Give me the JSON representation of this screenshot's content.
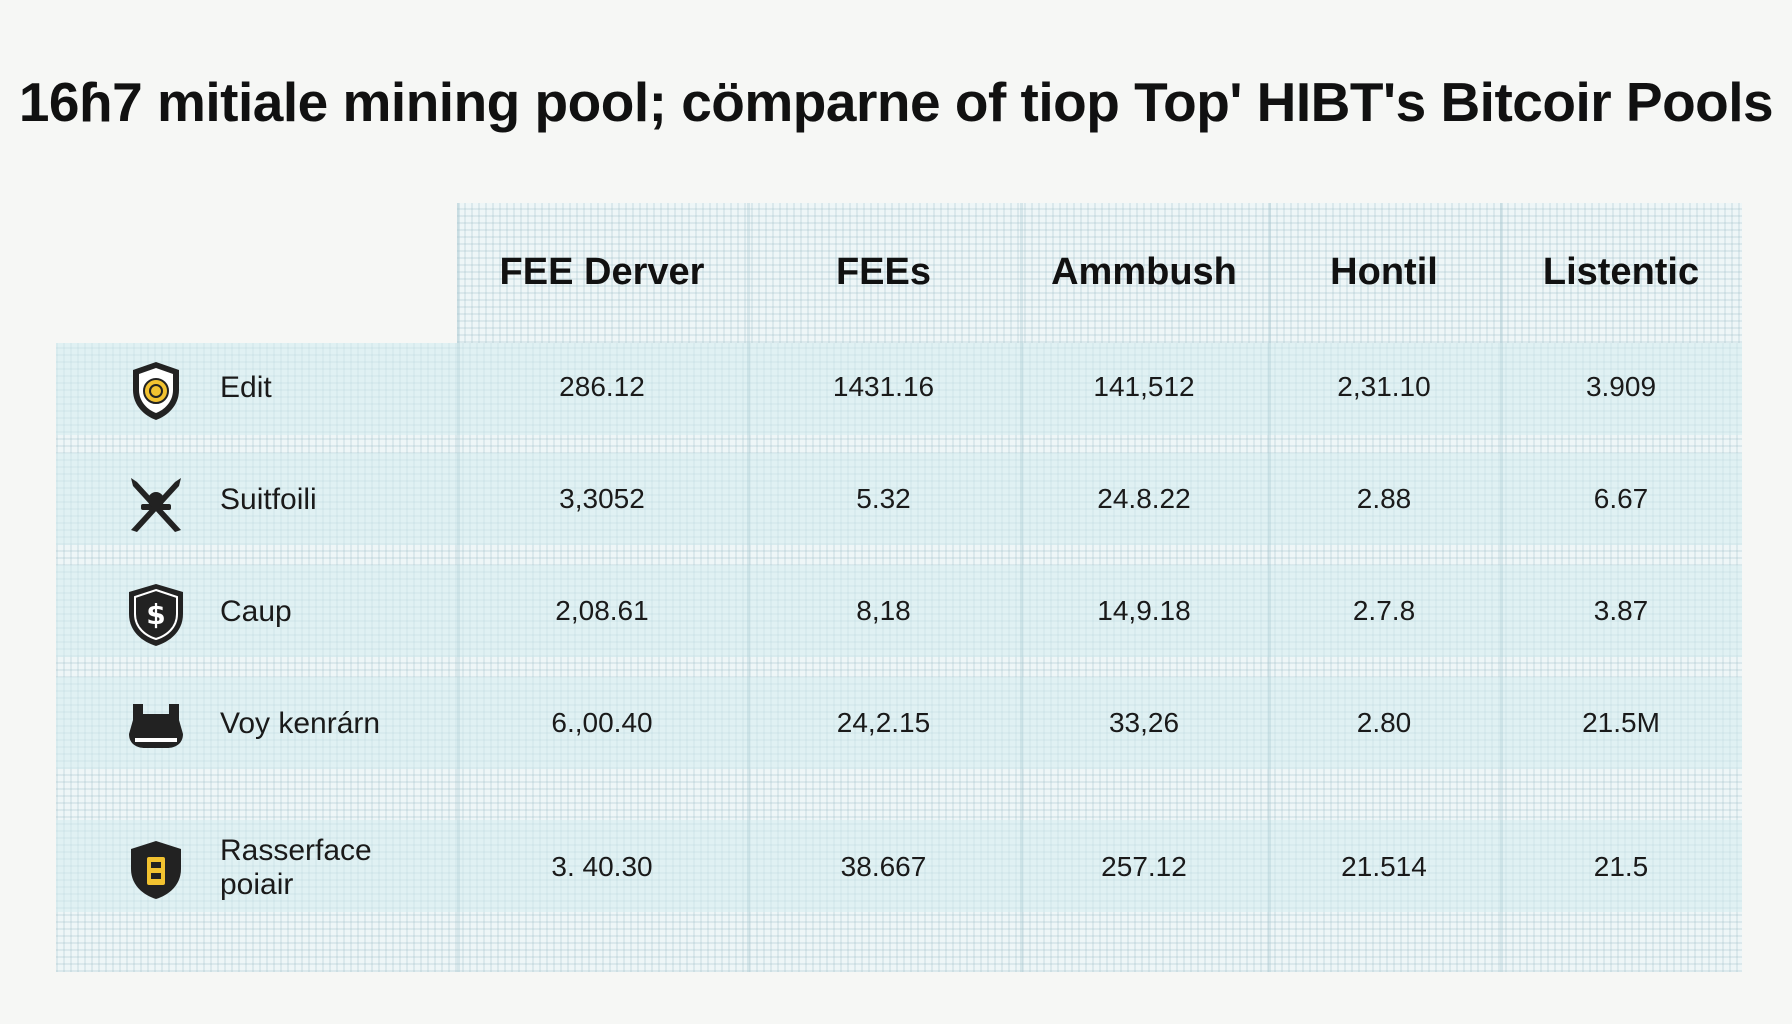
{
  "chart_data": {
    "type": "table",
    "title": "16ɦ7 mitiale mining pool; cömparne of tiop Top' HIBT's Bitcoir Pools",
    "columns": [
      "FEE Derver",
      "FEEs",
      "Ammbush",
      "Hontil",
      "Listentic"
    ],
    "rows": [
      {
        "label": "Edit",
        "icon": "shield-coin-icon",
        "values": [
          "286.12",
          "1431.16",
          "141,512",
          "2,31.10",
          "3.909"
        ]
      },
      {
        "label": "Suitfoili",
        "icon": "crossed-swords-icon",
        "values": [
          "3,3052",
          "5.32",
          "24.8.22",
          "2.88",
          "6.67"
        ]
      },
      {
        "label": "Caup",
        "icon": "shield-dollar-icon",
        "values": [
          "2,08.61",
          "8,18",
          "14,9.18",
          "2.7.8",
          "3.87"
        ]
      },
      {
        "label": "Voy kenrárn",
        "icon": "helmet-icon",
        "values": [
          "6.,00.40",
          "24,2.15",
          "33,26",
          "2.80",
          "21.5M"
        ]
      },
      {
        "label": "Rasserface poiair",
        "icon": "shield-tower-icon",
        "values": [
          "3. 40.30",
          "38.667",
          "257.12",
          "21.514",
          "21.5"
        ]
      }
    ]
  },
  "colors": {
    "background": "#f6f7f5",
    "grid_panel": "#eef6f7",
    "text": "#111111",
    "icon_dark": "#222222",
    "icon_accent": "#f2c230"
  }
}
